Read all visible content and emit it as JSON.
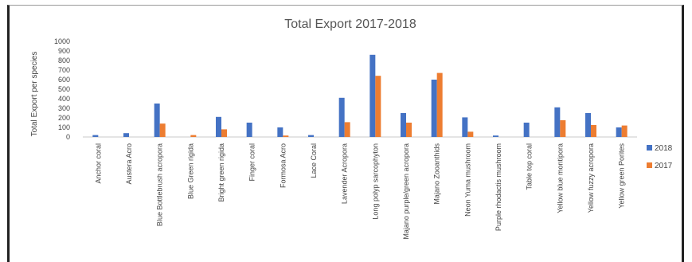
{
  "chart_data": {
    "type": "bar",
    "title": "Total Export 2017-2018",
    "xlabel": "",
    "ylabel": "Total Export per species",
    "ylim": [
      0,
      1000
    ],
    "yticks": [
      0,
      100,
      200,
      300,
      400,
      500,
      600,
      700,
      800,
      900,
      1000
    ],
    "grid": false,
    "legend_position": "right",
    "categories": [
      "Anchor coral",
      "Austera Acro",
      "Blue Bottlebrush acropora",
      "Blue Green rigida",
      "Bright green rigida",
      "Finger coral",
      "Formosa Acro",
      "Lace Coral",
      "Lavender Acropora",
      "Long polyp sarcophyton",
      "Majano purple/green acropora",
      "Majano Zooanthids",
      "Neon Yuma mushroom",
      "Purple rhodactis mushroom",
      "Table top coral",
      "Yellow blue montipora",
      "Yellow fuzzy acropora",
      "Yellow green Porites"
    ],
    "series": [
      {
        "name": "2018",
        "color": "#4472C4",
        "values": [
          20,
          40,
          350,
          0,
          210,
          150,
          100,
          20,
          410,
          860,
          250,
          600,
          205,
          15,
          150,
          310,
          250,
          100
        ]
      },
      {
        "name": "2017",
        "color": "#ED7D31",
        "values": [
          0,
          0,
          140,
          20,
          80,
          0,
          15,
          0,
          155,
          640,
          150,
          670,
          55,
          0,
          0,
          175,
          125,
          120
        ]
      }
    ]
  }
}
